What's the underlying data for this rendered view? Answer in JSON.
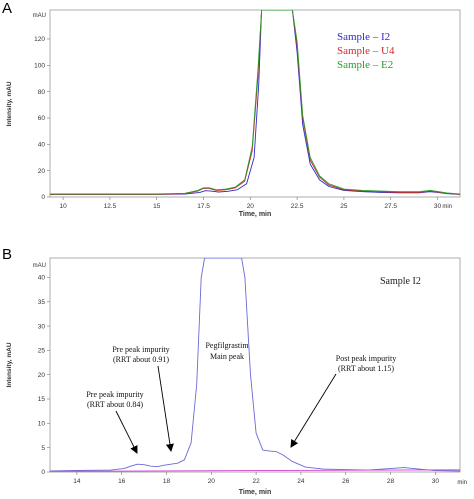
{
  "panels": [
    {
      "label": "A",
      "chart_data": {
        "type": "line",
        "title": "",
        "xlabel": "Time, min",
        "ylabel": "Intensity, mAU",
        "y_unit_label": "mAU",
        "x_unit_label": "min",
        "xlim": [
          9.3,
          31.2
        ],
        "ylim": [
          0,
          142
        ],
        "x_ticks": [
          10,
          12.5,
          15,
          17.5,
          20,
          22.5,
          25,
          27.5,
          30
        ],
        "x_tick_labels": [
          "10",
          "12.5",
          "15",
          "17.5",
          "20",
          "22.5",
          "25",
          "27.5",
          "30"
        ],
        "y_ticks": [
          0,
          20,
          40,
          60,
          80,
          100,
          120
        ],
        "y_tick_labels": [
          "0",
          "20",
          "40",
          "60",
          "80",
          "100",
          "120"
        ],
        "legend_position": "top-right",
        "series": [
          {
            "name": "Sample – I2",
            "color": "#2b2bc8",
            "x": [
              9.3,
              12,
              15,
              16.5,
              17.3,
              17.6,
              17.9,
              18.3,
              18.8,
              19.3,
              19.8,
              20.2,
              20.45,
              20.6,
              20.75,
              22.1,
              22.25,
              22.5,
              22.8,
              23.2,
              23.7,
              24.2,
              25,
              26,
              27,
              28,
              29,
              29.6,
              30,
              30.5,
              31.2
            ],
            "y": [
              2,
              2,
              2,
              2.2,
              3.5,
              4.8,
              4.5,
              3.8,
              4.3,
              5.5,
              10,
              30,
              85,
              142,
              142,
              142,
              142,
              110,
              55,
              25,
              13,
              8,
              5,
              4,
              3.5,
              3.2,
              3.2,
              4,
              3.5,
              2.5,
              2
            ]
          },
          {
            "name": "Sample – U4",
            "color": "#d42a2a",
            "x": [
              9.3,
              12,
              15,
              16.5,
              17.2,
              17.5,
              17.8,
              18.2,
              18.7,
              19.2,
              19.7,
              20.1,
              20.4,
              20.6,
              20.75,
              22.1,
              22.25,
              22.5,
              22.8,
              23.2,
              23.7,
              24.2,
              25,
              26,
              27,
              28,
              29,
              29.6,
              30,
              30.5,
              31.2
            ],
            "y": [
              2,
              2,
              2,
              2.5,
              4.5,
              6.5,
              6.5,
              5,
              5.5,
              7,
              12,
              35,
              90,
              142,
              142,
              142,
              142,
              115,
              60,
              28,
              15,
              9,
              5.5,
              4.5,
              4,
              3.5,
              3.5,
              4.5,
              3.8,
              2.8,
              2
            ]
          },
          {
            "name": "Sample – E2",
            "color": "#2a9a2a",
            "x": [
              9.3,
              12,
              15,
              16.5,
              17.2,
              17.5,
              17.8,
              18.2,
              18.7,
              19.2,
              19.7,
              20.1,
              20.4,
              20.6,
              20.75,
              22.1,
              22.25,
              22.5,
              22.8,
              23.2,
              23.7,
              24.2,
              25,
              26,
              27,
              28,
              29,
              29.6,
              30,
              30.5,
              31.2
            ],
            "y": [
              2.3,
              2.3,
              2.3,
              2.8,
              5,
              7,
              7,
              5.5,
              6,
              7.5,
              13,
              38,
              95,
              142,
              142,
              142,
              142,
              118,
              62,
              30,
              16,
              10,
              6,
              5,
              4.5,
              4,
              4,
              5,
              4.2,
              3,
              2.3
            ]
          }
        ]
      }
    },
    {
      "label": "B",
      "chart_data": {
        "type": "line",
        "title": "",
        "xlabel": "Time, min",
        "ylabel": "Intensity, mAU",
        "y_unit_label": "mAU",
        "x_unit_label": "min",
        "xlim": [
          12.8,
          31.1
        ],
        "ylim": [
          0,
          44
        ],
        "x_ticks": [
          14,
          16,
          18,
          20,
          22,
          24,
          26,
          28,
          30
        ],
        "x_tick_labels": [
          "14",
          "16",
          "18",
          "20",
          "22",
          "24",
          "26",
          "28",
          "30"
        ],
        "y_ticks": [
          0,
          5,
          10,
          15,
          20,
          25,
          30,
          35,
          40
        ],
        "y_tick_labels": [
          "0",
          "5",
          "10",
          "15",
          "20",
          "25",
          "30",
          "35",
          "40"
        ],
        "legend_text": "Sample I2",
        "legend_position": "top-right",
        "series": [
          {
            "color": "#6a6ad8",
            "x": [
              12.8,
              14,
              15.5,
              16.1,
              16.4,
              16.7,
              17.0,
              17.3,
              17.6,
              17.9,
              18.2,
              18.5,
              18.8,
              19.1,
              19.35,
              19.55,
              19.7,
              21.35,
              21.5,
              21.75,
              22.0,
              22.3,
              22.6,
              22.9,
              23.2,
              23.6,
              24.2,
              25,
              26,
              27,
              28.6,
              29.5,
              30,
              31.1
            ],
            "y": [
              0.2,
              0.3,
              0.4,
              0.7,
              1.2,
              1.6,
              1.5,
              1.2,
              1.1,
              1.4,
              1.6,
              1.8,
              2.5,
              6,
              18,
              40,
              44,
              44,
              40,
              20,
              8,
              4.5,
              4.3,
              4.2,
              3.5,
              2.2,
              1.0,
              0.6,
              0.5,
              0.4,
              0.9,
              0.5,
              0.3,
              0.2
            ]
          },
          {
            "color": "#d040d0",
            "x": [
              12.8,
              31.1
            ],
            "y": [
              0.15,
              0.45
            ]
          }
        ],
        "annotations": [
          {
            "lines": [
              "Pre peak impurity",
              "(RRT about 0.84)"
            ],
            "x": 16.7,
            "y": 1.6
          },
          {
            "lines": [
              "Pre peak impurity",
              "(RRT about 0.91)"
            ],
            "x": 17.9,
            "y": 1.4
          },
          {
            "lines": [
              "Pegfilgrastim",
              "Main peak"
            ],
            "x": null,
            "y": null
          },
          {
            "lines": [
              "Post peak impurity",
              "(RRT about 1.15)"
            ],
            "x": 22.9,
            "y": 4.2
          }
        ]
      }
    }
  ]
}
